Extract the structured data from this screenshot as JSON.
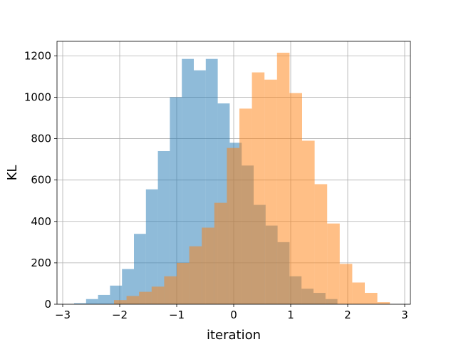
{
  "chart_data": {
    "type": "bar",
    "title": "",
    "xlabel": "iteration",
    "ylabel": "KL",
    "xlim": [
      -3.1,
      3.1
    ],
    "ylim": [
      0,
      1270
    ],
    "grid": true,
    "x_ticks": [
      -3,
      -2,
      -1,
      0,
      1,
      2,
      3
    ],
    "x_tick_labels": [
      "−3",
      "−2",
      "−1",
      "0",
      "1",
      "2",
      "3"
    ],
    "y_ticks": [
      0,
      200,
      400,
      600,
      800,
      1000,
      1200
    ],
    "y_tick_labels": [
      "0",
      "200",
      "400",
      "600",
      "800",
      "1000",
      "1200"
    ],
    "series": [
      {
        "color": "#1f77b4",
        "alpha": 0.5,
        "bin_edges": [
          -2.8,
          -2.59,
          -2.38,
          -2.17,
          -1.96,
          -1.75,
          -1.54,
          -1.33,
          -1.12,
          -0.91,
          -0.7,
          -0.49,
          -0.28,
          -0.07,
          0.14,
          0.35,
          0.56,
          0.77,
          0.98,
          1.19,
          1.4,
          1.61,
          1.82
        ],
        "values": [
          5,
          25,
          45,
          90,
          170,
          340,
          555,
          740,
          1000,
          1185,
          1130,
          1185,
          970,
          780,
          670,
          480,
          380,
          300,
          135,
          75,
          55,
          25
        ]
      },
      {
        "color": "#ff7f0e",
        "alpha": 0.5,
        "bin_edges": [
          -2.1,
          -1.88,
          -1.66,
          -1.44,
          -1.22,
          -1.0,
          -0.78,
          -0.56,
          -0.34,
          -0.12,
          0.1,
          0.32,
          0.54,
          0.76,
          0.98,
          1.2,
          1.42,
          1.64,
          1.86,
          2.08,
          2.3,
          2.52,
          2.74
        ],
        "values": [
          20,
          40,
          60,
          85,
          135,
          200,
          280,
          370,
          490,
          755,
          945,
          1120,
          1085,
          1215,
          1020,
          790,
          580,
          390,
          195,
          105,
          55,
          10
        ]
      }
    ]
  }
}
